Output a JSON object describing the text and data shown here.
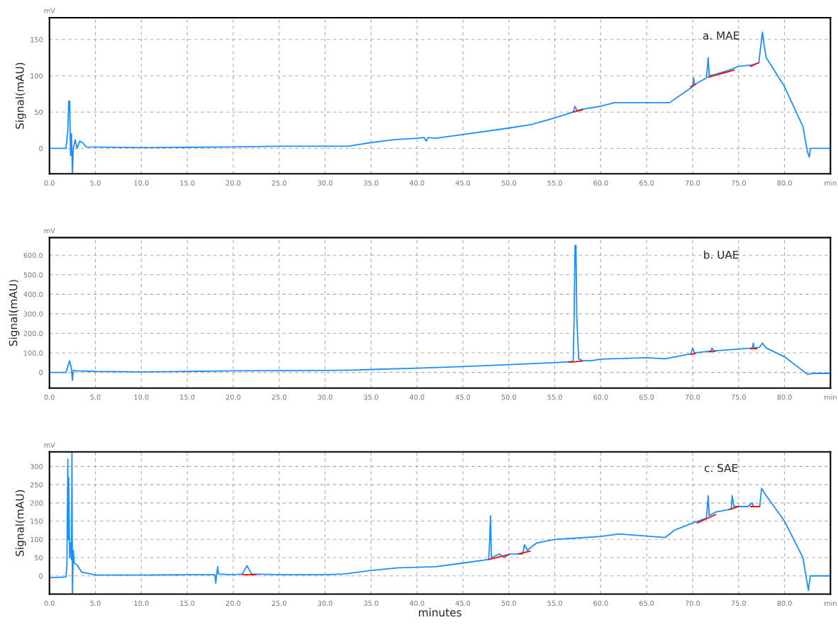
{
  "chart_data": [
    {
      "type": "line",
      "title": "a. MAE",
      "ylabel": "Signal(mAU)",
      "annotations": [
        "mV"
      ],
      "xlim": [
        0,
        85
      ],
      "xticks": [
        {
          "value": 0,
          "label": "0.0"
        },
        {
          "value": 5,
          "label": "5.0"
        },
        {
          "value": 10,
          "label": "10.0"
        },
        {
          "value": 15,
          "label": "15.0"
        },
        {
          "value": 20,
          "label": "20.0"
        },
        {
          "value": 25,
          "label": "25.0"
        },
        {
          "value": 30,
          "label": "30.0"
        },
        {
          "value": 35,
          "label": "35.0"
        },
        {
          "value": 40,
          "label": "40.0"
        },
        {
          "value": 45,
          "label": "45.0"
        },
        {
          "value": 50,
          "label": "50.0"
        },
        {
          "value": 55,
          "label": "55.0"
        },
        {
          "value": 60,
          "label": "60.0"
        },
        {
          "value": 65,
          "label": "65.0"
        },
        {
          "value": 70,
          "label": "70.0"
        },
        {
          "value": 75,
          "label": "75.0"
        },
        {
          "value": 80,
          "label": "80.0"
        },
        {
          "value": 85,
          "label": "min"
        }
      ],
      "ylim": [
        -35,
        180
      ],
      "yticks": [
        0,
        50,
        100,
        150
      ],
      "grid": true,
      "series": [
        {
          "color": "#1e8fff",
          "x": [
            0,
            1.8,
            2.0,
            2.1,
            2.2,
            2.3,
            2.4,
            2.5,
            2.6,
            2.8,
            3.0,
            3.3,
            3.6,
            4.0,
            10,
            20,
            25,
            30,
            32.5,
            35,
            37.5,
            40,
            40.8,
            41,
            41.2,
            42,
            45,
            50,
            52.5,
            55,
            57,
            57.2,
            57.4,
            58,
            60,
            61.5,
            67.5,
            70,
            70.1,
            70.2,
            71.5,
            71.7,
            71.8,
            72.5,
            74,
            75,
            76.5,
            77.2,
            77.5,
            77.6,
            77.8,
            78,
            80,
            82,
            82.5,
            82.7,
            82.8,
            85
          ],
          "values": [
            0,
            0,
            25,
            65,
            65,
            -10,
            20,
            -35,
            0,
            12,
            0,
            10,
            8,
            2,
            1,
            2,
            3,
            3,
            3,
            8,
            12,
            14,
            15,
            10,
            15,
            14,
            19,
            28,
            33,
            42,
            50,
            58,
            52,
            54,
            58,
            63,
            63,
            85,
            97,
            88,
            97,
            125,
            100,
            102,
            108,
            113,
            115,
            118,
            150,
            160,
            140,
            125,
            85,
            30,
            -5,
            -12,
            0,
            0
          ]
        },
        {
          "color": "#ff0000",
          "x": [
            57,
            58,
            null,
            69.8,
            70.3,
            null,
            71.7,
            74.5,
            null,
            76.3,
            77.2
          ],
          "values": [
            50,
            53,
            null,
            85,
            88,
            null,
            98,
            108,
            null,
            113,
            118
          ]
        }
      ]
    },
    {
      "type": "line",
      "title": "b. UAE",
      "ylabel": "Signal(mAU)",
      "annotations": [
        "mV"
      ],
      "xlim": [
        0,
        85
      ],
      "xticks": [
        {
          "value": 0,
          "label": "0.0"
        },
        {
          "value": 5,
          "label": "5.0"
        },
        {
          "value": 10,
          "label": "10.0"
        },
        {
          "value": 15,
          "label": "15.0"
        },
        {
          "value": 20,
          "label": "20.0"
        },
        {
          "value": 25,
          "label": "25.0"
        },
        {
          "value": 30,
          "label": "30.0"
        },
        {
          "value": 35,
          "label": "35.0"
        },
        {
          "value": 40,
          "label": "40.0"
        },
        {
          "value": 45,
          "label": "45.0"
        },
        {
          "value": 50,
          "label": "50.0"
        },
        {
          "value": 55,
          "label": "55.0"
        },
        {
          "value": 60,
          "label": "60.0"
        },
        {
          "value": 65,
          "label": "65.0"
        },
        {
          "value": 70,
          "label": "70.0"
        },
        {
          "value": 75,
          "label": "75.0"
        },
        {
          "value": 80,
          "label": "80.0"
        },
        {
          "value": 85,
          "label": "min"
        }
      ],
      "ylim": [
        -80,
        690
      ],
      "yticks": [
        {
          "value": 0,
          "label": "0"
        },
        {
          "value": 100,
          "label": "100.0"
        },
        {
          "value": 200,
          "label": "200.0"
        },
        {
          "value": 300,
          "label": "300.0"
        },
        {
          "value": 400,
          "label": "400.0"
        },
        {
          "value": 500,
          "label": "500.0"
        },
        {
          "value": 600,
          "label": "600.0"
        }
      ],
      "grid": true,
      "series": [
        {
          "color": "#1e8fff",
          "x": [
            0,
            1.8,
            2.0,
            2.2,
            2.4,
            2.5,
            2.6,
            3,
            5,
            10,
            15,
            20,
            30,
            33,
            35,
            40,
            45,
            50,
            55,
            56.8,
            57,
            57.1,
            57.2,
            57.3,
            57.4,
            57.6,
            58,
            59,
            60,
            65,
            67,
            69.8,
            70,
            70.2,
            72,
            72.1,
            72.3,
            75,
            76.5,
            76.6,
            76.7,
            77.3,
            77.6,
            78,
            80,
            82.5,
            83,
            85
          ],
          "values": [
            0,
            0,
            30,
            60,
            20,
            -40,
            10,
            8,
            5,
            3,
            5,
            8,
            10,
            12,
            15,
            22,
            30,
            40,
            50,
            55,
            60,
            270,
            650,
            650,
            270,
            70,
            60,
            60,
            68,
            75,
            70,
            95,
            125,
            100,
            110,
            125,
            110,
            120,
            125,
            150,
            125,
            130,
            150,
            125,
            80,
            -10,
            -5,
            -5
          ]
        },
        {
          "color": "#ff0000",
          "x": [
            56.5,
            58,
            null,
            69.8,
            70.3,
            null,
            71.8,
            72.5,
            null,
            76.3,
            77
          ],
          "values": [
            52,
            58,
            null,
            92,
            97,
            null,
            105,
            110,
            null,
            122,
            122
          ]
        }
      ]
    },
    {
      "type": "line",
      "title": "c. SAE",
      "xlabel": "minutes",
      "ylabel": "Signal(mAU)",
      "annotations": [
        "mV"
      ],
      "xlim": [
        0,
        85
      ],
      "xticks": [
        {
          "value": 0,
          "label": "0.0"
        },
        {
          "value": 5,
          "label": "5.0"
        },
        {
          "value": 10,
          "label": "10.0"
        },
        {
          "value": 15,
          "label": "15.0"
        },
        {
          "value": 20,
          "label": "20.0"
        },
        {
          "value": 25,
          "label": "25.0"
        },
        {
          "value": 30,
          "label": "30.0"
        },
        {
          "value": 35,
          "label": "35.0"
        },
        {
          "value": 40,
          "label": "40.0"
        },
        {
          "value": 45,
          "label": "45.0"
        },
        {
          "value": 50,
          "label": "50.0"
        },
        {
          "value": 55,
          "label": "55.0"
        },
        {
          "value": 60,
          "label": "60.0"
        },
        {
          "value": 65,
          "label": "65.0"
        },
        {
          "value": 70,
          "label": "70.0"
        },
        {
          "value": 75,
          "label": "75.0"
        },
        {
          "value": 80,
          "label": "80.0"
        },
        {
          "value": 85,
          "label": "min"
        }
      ],
      "ylim": [
        -50,
        340
      ],
      "yticks": [
        0,
        50,
        100,
        150,
        200,
        250,
        300
      ],
      "grid": true,
      "series": [
        {
          "color": "#1e8fff",
          "x": [
            0,
            1.8,
            1.9,
            2.0,
            2.05,
            2.1,
            2.2,
            2.3,
            2.4,
            2.45,
            2.5,
            2.6,
            2.7,
            3,
            3.5,
            4,
            5,
            10,
            15,
            18,
            18.1,
            18.3,
            18.4,
            20,
            21,
            21.5,
            22,
            25,
            30,
            32,
            35,
            38,
            42,
            45,
            47.8,
            47.9,
            48,
            48.1,
            49,
            49.5,
            50,
            51.5,
            51.7,
            52,
            53,
            55,
            57,
            60,
            62,
            67,
            68,
            70,
            71.5,
            71.7,
            71.8,
            72.5,
            74.2,
            74.3,
            74.5,
            76,
            76.5,
            76.6,
            77.3,
            77.5,
            78,
            80,
            82,
            82.6,
            82.8,
            85
          ],
          "values": [
            -5,
            -3,
            30,
            320,
            100,
            270,
            50,
            90,
            45,
            340,
            -50,
            70,
            35,
            30,
            10,
            8,
            2,
            2,
            3,
            3,
            -20,
            25,
            5,
            3,
            5,
            28,
            5,
            3,
            3,
            5,
            15,
            22,
            25,
            35,
            45,
            90,
            165,
            50,
            60,
            50,
            60,
            60,
            85,
            70,
            90,
            100,
            103,
            108,
            115,
            105,
            125,
            145,
            158,
            220,
            165,
            175,
            183,
            220,
            190,
            190,
            200,
            190,
            190,
            240,
            220,
            150,
            50,
            -40,
            0,
            0
          ]
        },
        {
          "color": "#ff0000",
          "x": [
            21,
            22.5,
            null,
            47.8,
            50,
            null,
            51,
            52.3,
            null,
            70.5,
            72.5,
            null,
            74,
            75,
            null,
            76.3,
            77.3
          ],
          "values": [
            3,
            3,
            null,
            45,
            58,
            null,
            60,
            68,
            null,
            145,
            168,
            null,
            182,
            190,
            null,
            190,
            190
          ]
        }
      ]
    }
  ]
}
